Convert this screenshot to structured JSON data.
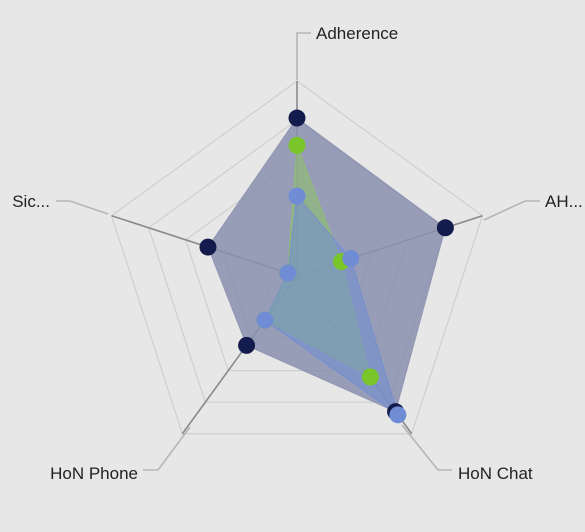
{
  "chart_data": {
    "type": "radar",
    "axes": [
      "Adherence",
      "AH...",
      "HoN Chat",
      "HoN Phone",
      "Sic..."
    ],
    "scale": [
      0,
      1
    ],
    "grid_levels": 5,
    "legend": "none",
    "series": [
      {
        "color": "#141c4d",
        "fill": "#8a8fae",
        "values": [
          0.81,
          0.8,
          0.86,
          0.44,
          0.48
        ]
      },
      {
        "color": "#7ac52a",
        "fill": "#8ec26a",
        "values": [
          0.67,
          0.24,
          0.64,
          0.28,
          0.05
        ]
      },
      {
        "color": "#6f8cd4",
        "fill": "#6f8cd4",
        "values": [
          0.41,
          0.29,
          0.88,
          0.28,
          0.05
        ]
      }
    ]
  }
}
